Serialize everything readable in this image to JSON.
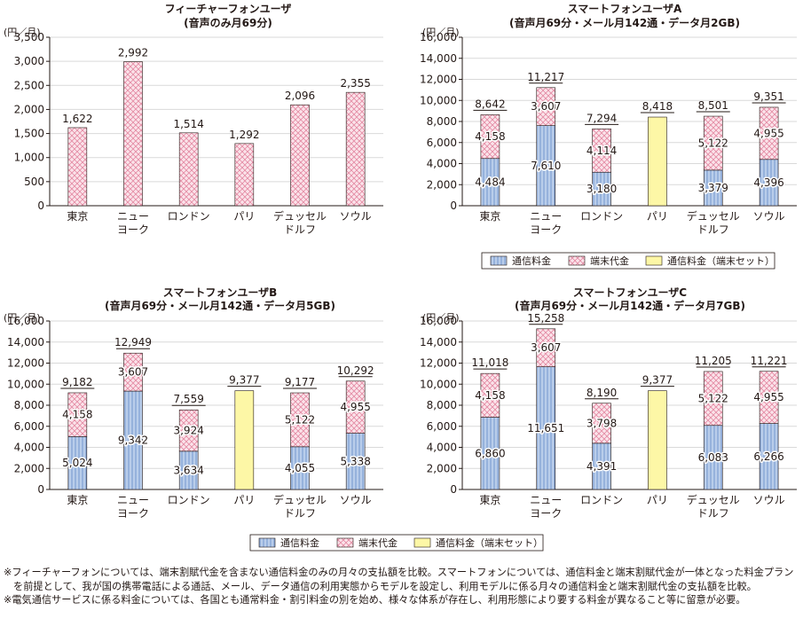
{
  "colors": {
    "comm_fill": "#b9cdea",
    "comm_stripe": "#7f9fd3",
    "device_fill": "#fbe3ea",
    "device_hatch": "#e48aa3",
    "set_fill": "#fdf7a6",
    "bar_stroke": "#231815",
    "axis": "#231815",
    "grid": "#d9d9d9"
  },
  "legend": {
    "comm": "通信料金",
    "device": "端末代金",
    "set": "通信料金（端末セット）"
  },
  "chart_data": [
    {
      "type": "bar",
      "title": "フィーチャーフォンユーザ",
      "subtitle": "(音声のみ月69分)",
      "unit_label": "(円／月)",
      "categories": [
        [
          "東京"
        ],
        [
          "ニュー",
          "ヨーク"
        ],
        [
          "ロンドン"
        ],
        [
          "パリ"
        ],
        [
          "デュッセル",
          "ドルフ"
        ],
        [
          "ソウル"
        ]
      ],
      "ylim": [
        0,
        3500
      ],
      "yticks": [
        "0",
        "500",
        "1,000",
        "1,500",
        "2,000",
        "2,500",
        "3,000",
        "3,500"
      ],
      "ytick_values": [
        0,
        500,
        1000,
        1500,
        2000,
        2500,
        3000,
        3500
      ],
      "series": [
        {
          "key": "device",
          "values": [
            1622,
            2992,
            1514,
            1292,
            2096,
            2355
          ]
        }
      ],
      "value_labels": [
        {
          "device": "1,622"
        },
        {
          "device": "2,992"
        },
        {
          "device": "1,514"
        },
        {
          "device": "1,292"
        },
        {
          "device": "2,096"
        },
        {
          "device": "2,355"
        }
      ],
      "totals": [
        null,
        null,
        null,
        null,
        null,
        null
      ],
      "grid": true,
      "legend": "none"
    },
    {
      "type": "bar",
      "title": "スマートフォンユーザA",
      "subtitle": "(音声月69分・メール月142通・データ月2GB)",
      "unit_label": "(円／月)",
      "categories": [
        [
          "東京"
        ],
        [
          "ニュー",
          "ヨーク"
        ],
        [
          "ロンドン"
        ],
        [
          "パリ"
        ],
        [
          "デュッセル",
          "ドルフ"
        ],
        [
          "ソウル"
        ]
      ],
      "ylim": [
        0,
        16000
      ],
      "yticks": [
        "0",
        "2,000",
        "4,000",
        "6,000",
        "8,000",
        "10,000",
        "12,000",
        "14,000",
        "16,000"
      ],
      "ytick_values": [
        0,
        2000,
        4000,
        6000,
        8000,
        10000,
        12000,
        14000,
        16000
      ],
      "series": [
        {
          "key": "comm",
          "name": "通信料金",
          "values": [
            4484,
            7610,
            3180,
            0,
            3379,
            4396
          ]
        },
        {
          "key": "device",
          "name": "端末代金",
          "values": [
            4158,
            3607,
            4114,
            0,
            5122,
            4955
          ]
        },
        {
          "key": "set",
          "name": "通信料金（端末セット）",
          "values": [
            0,
            0,
            0,
            8418,
            0,
            0
          ]
        }
      ],
      "value_labels": [
        {
          "comm": "4,484",
          "device": "4,158"
        },
        {
          "comm": "7,610",
          "device": "3,607"
        },
        {
          "comm": "3,180",
          "device": "4,114"
        },
        {},
        {
          "comm": "3,379",
          "device": "5,122"
        },
        {
          "comm": "4,396",
          "device": "4,955"
        }
      ],
      "totals": [
        "8,642",
        "11,217",
        "7,294",
        "8,418",
        "8,501",
        "9,351"
      ],
      "grid": true,
      "legend": "bottom"
    },
    {
      "type": "bar",
      "title": "スマートフォンユーザB",
      "subtitle": "(音声月69分・メール月142通・データ月5GB)",
      "unit_label": "(円／月)",
      "categories": [
        [
          "東京"
        ],
        [
          "ニュー",
          "ヨーク"
        ],
        [
          "ロンドン"
        ],
        [
          "パリ"
        ],
        [
          "デュッセル",
          "ドルフ"
        ],
        [
          "ソウル"
        ]
      ],
      "ylim": [
        0,
        16000
      ],
      "yticks": [
        "0",
        "2,000",
        "4,000",
        "6,000",
        "8,000",
        "10,000",
        "12,000",
        "14,000",
        "16,000"
      ],
      "ytick_values": [
        0,
        2000,
        4000,
        6000,
        8000,
        10000,
        12000,
        14000,
        16000
      ],
      "series": [
        {
          "key": "comm",
          "name": "通信料金",
          "values": [
            5024,
            9342,
            3634,
            0,
            4055,
            5338
          ]
        },
        {
          "key": "device",
          "name": "端末代金",
          "values": [
            4158,
            3607,
            3924,
            0,
            5122,
            4955
          ]
        },
        {
          "key": "set",
          "name": "通信料金（端末セット）",
          "values": [
            0,
            0,
            0,
            9377,
            0,
            0
          ]
        }
      ],
      "value_labels": [
        {
          "comm": "5,024",
          "device": "4,158"
        },
        {
          "comm": "9,342",
          "device": "3,607"
        },
        {
          "comm": "3,634",
          "device": "3,924"
        },
        {},
        {
          "comm": "4,055",
          "device": "5,122"
        },
        {
          "comm": "5,338",
          "device": "4,955"
        }
      ],
      "totals": [
        "9,182",
        "12,949",
        "7,559",
        "9,377",
        "9,177",
        "10,292"
      ],
      "grid": true,
      "legend": "bottom"
    },
    {
      "type": "bar",
      "title": "スマートフォンユーザC",
      "subtitle": "(音声月69分・メール月142通・データ月7GB)",
      "unit_label": "(円／月)",
      "categories": [
        [
          "東京"
        ],
        [
          "ニュー",
          "ヨーク"
        ],
        [
          "ロンドン"
        ],
        [
          "パリ"
        ],
        [
          "デュッセル",
          "ドルフ"
        ],
        [
          "ソウル"
        ]
      ],
      "ylim": [
        0,
        16000
      ],
      "yticks": [
        "0",
        "2,000",
        "4,000",
        "6,000",
        "8,000",
        "10,000",
        "12,000",
        "14,000",
        "16,000"
      ],
      "ytick_values": [
        0,
        2000,
        4000,
        6000,
        8000,
        10000,
        12000,
        14000,
        16000
      ],
      "series": [
        {
          "key": "comm",
          "name": "通信料金",
          "values": [
            6860,
            11651,
            4391,
            0,
            6083,
            6266
          ]
        },
        {
          "key": "device",
          "name": "端末代金",
          "values": [
            4158,
            3607,
            3798,
            0,
            5122,
            4955
          ]
        },
        {
          "key": "set",
          "name": "通信料金（端末セット）",
          "values": [
            0,
            0,
            0,
            9377,
            0,
            0
          ]
        }
      ],
      "value_labels": [
        {
          "comm": "6,860",
          "device": "4,158"
        },
        {
          "comm": "11,651",
          "device": "3,607"
        },
        {
          "comm": "4,391",
          "device": "3,798"
        },
        {},
        {
          "comm": "6,083",
          "device": "5,122"
        },
        {
          "comm": "6,266",
          "device": "4,955"
        }
      ],
      "totals": [
        "11,018",
        "15,258",
        "8,190",
        "9,377",
        "11,205",
        "11,221"
      ],
      "grid": true,
      "legend": "bottom"
    }
  ],
  "notes": [
    "※フィーチャーフォンについては、端末割賦代金を含まない通信料金のみの月々の支払額を比較。スマートフォンについては、通信料金と端末割賦代金が一体となった料金プランを前提として、我が国の携帯電話による通話、メール、データ通信の利用実態からモデルを設定し、利用モデルに係る月々の通信料金と端末割賦代金の支払額を比較。",
    "※電気通信サービスに係る料金については、各国とも通常料金・割引料金の別を始め、様々な体系が存在し、利用形態により要する料金が異なること等に留意が必要。"
  ]
}
